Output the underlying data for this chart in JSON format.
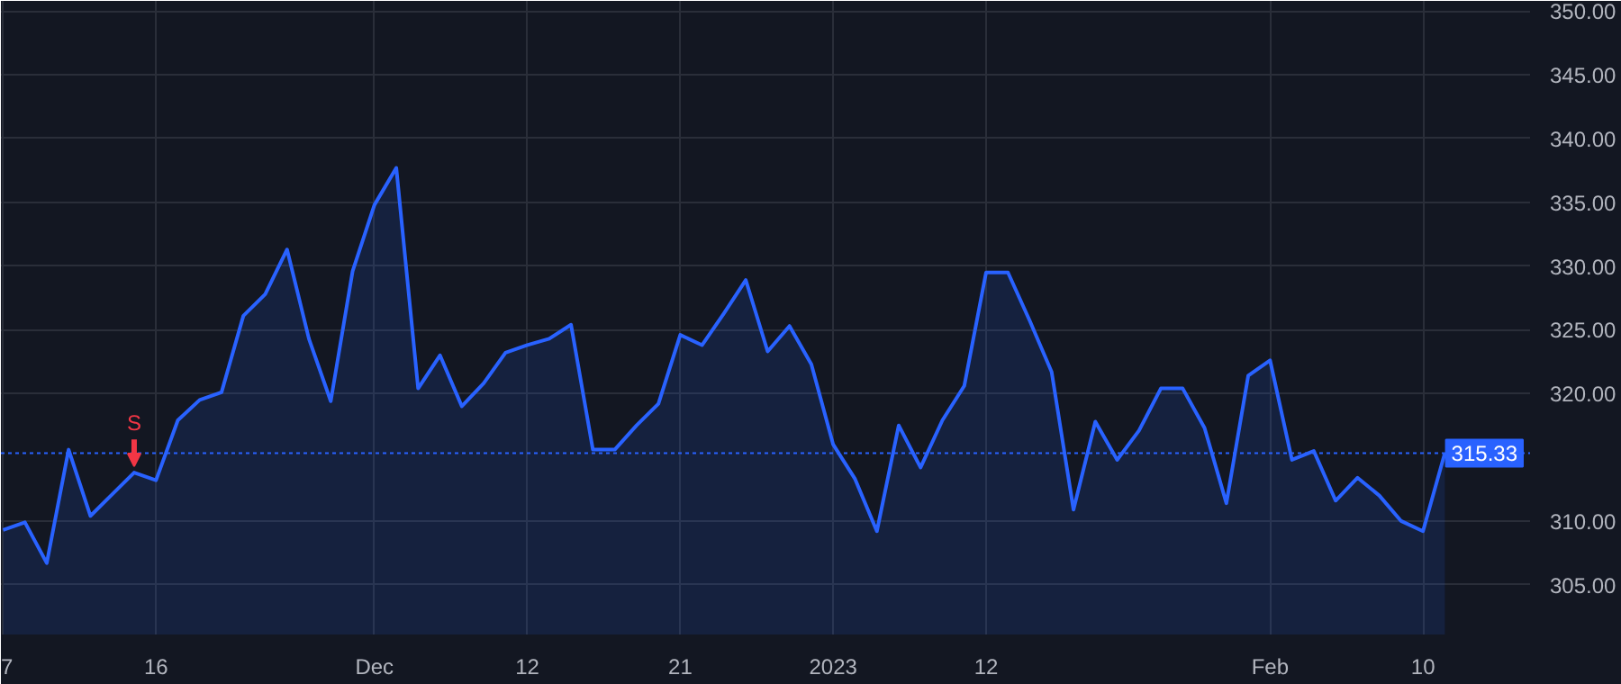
{
  "chart_data": {
    "type": "area",
    "categories": [
      "7",
      null,
      null,
      null,
      null,
      null,
      null,
      "16",
      null,
      null,
      null,
      null,
      null,
      null,
      null,
      null,
      null,
      "Dec",
      null,
      null,
      null,
      null,
      null,
      null,
      "12",
      null,
      null,
      null,
      null,
      null,
      null,
      "21",
      null,
      null,
      null,
      null,
      null,
      null,
      "2023",
      null,
      null,
      null,
      null,
      null,
      null,
      "12",
      null,
      null,
      null,
      null,
      null,
      null,
      null,
      null,
      null,
      null,
      null,
      null,
      "Feb",
      null,
      null,
      null,
      null,
      null,
      null,
      "10",
      null
    ],
    "series": [
      {
        "color": "#2962ff",
        "values": [
          309.3,
          309.9,
          306.7,
          315.6,
          310.4,
          312.1,
          313.8,
          313.2,
          317.9,
          319.5,
          320.1,
          326.1,
          327.8,
          331.3,
          324.3,
          319.4,
          329.6,
          334.8,
          337.7,
          320.4,
          323.0,
          319.0,
          320.8,
          323.2,
          323.8,
          324.3,
          325.4,
          315.6,
          315.6,
          317.5,
          319.2,
          324.6,
          323.8,
          326.3,
          328.9,
          323.3,
          325.3,
          322.3,
          316.0,
          313.3,
          309.2,
          317.5,
          314.2,
          317.9,
          320.6,
          329.5,
          329.5,
          325.7,
          321.7,
          310.9,
          317.8,
          314.8,
          317.1,
          320.4,
          320.4,
          317.3,
          311.4,
          321.4,
          322.6,
          314.8,
          315.5,
          311.6,
          313.4,
          312.0,
          310.0,
          309.2,
          315.33
        ]
      }
    ],
    "ylim": [
      301.1,
      350.8
    ],
    "yticks": [
      {
        "value": 305,
        "label": "305.00"
      },
      {
        "value": 310,
        "label": "310.00"
      },
      {
        "value": 320,
        "label": "320.00"
      },
      {
        "value": 325,
        "label": "325.00"
      },
      {
        "value": 330,
        "label": "330.00"
      },
      {
        "value": 335,
        "label": "335.00"
      },
      {
        "value": 340,
        "label": "340.00"
      },
      {
        "value": 345,
        "label": "345.00"
      },
      {
        "value": 350,
        "label": "350.00"
      }
    ],
    "ref_lines": [
      {
        "axis": "y",
        "value": 315.33,
        "label": "315.33",
        "color": "#2962ff",
        "line_style": "dotted"
      }
    ],
    "annotations": [
      {
        "text": "S",
        "y": 313.8
      }
    ],
    "grid": true,
    "marker": "none",
    "line_style": "solid"
  }
}
